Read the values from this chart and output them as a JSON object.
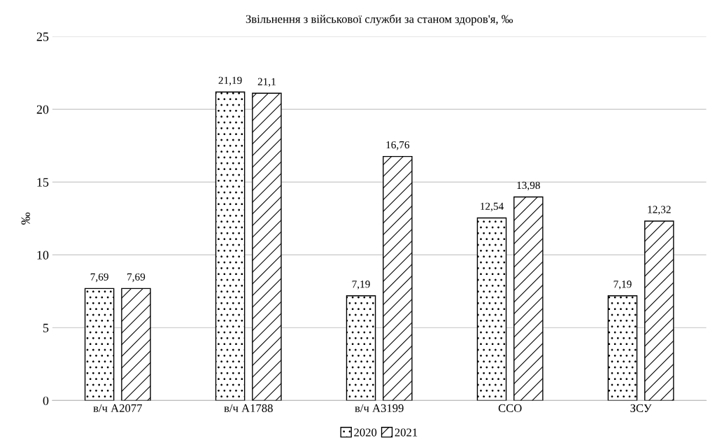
{
  "chart_data": {
    "type": "bar",
    "title": "Звільнення з військової служби за станом здоров'я, ‰",
    "ylabel": "‰",
    "categories": [
      "в/ч А2077",
      "в/ч А1788",
      "в/ч А3199",
      "ССО",
      "ЗСУ"
    ],
    "series": [
      {
        "name": "2020",
        "color": "#000000",
        "values": [
          7.69,
          21.19,
          7.19,
          12.54,
          7.19
        ],
        "value_labels": [
          "7,69",
          "21,19",
          "7,19",
          "12,54",
          "7,19"
        ]
      },
      {
        "name": "2021",
        "color": "#000000",
        "values": [
          7.69,
          21.1,
          16.76,
          13.98,
          12.32
        ],
        "value_labels": [
          "7,69",
          "21,1",
          "16,76",
          "13,98",
          "12,32"
        ]
      }
    ],
    "ylim": [
      0,
      25
    ],
    "yticks": [
      0,
      5,
      10,
      15,
      20,
      25
    ],
    "grid": "y",
    "legend": "bottom"
  }
}
